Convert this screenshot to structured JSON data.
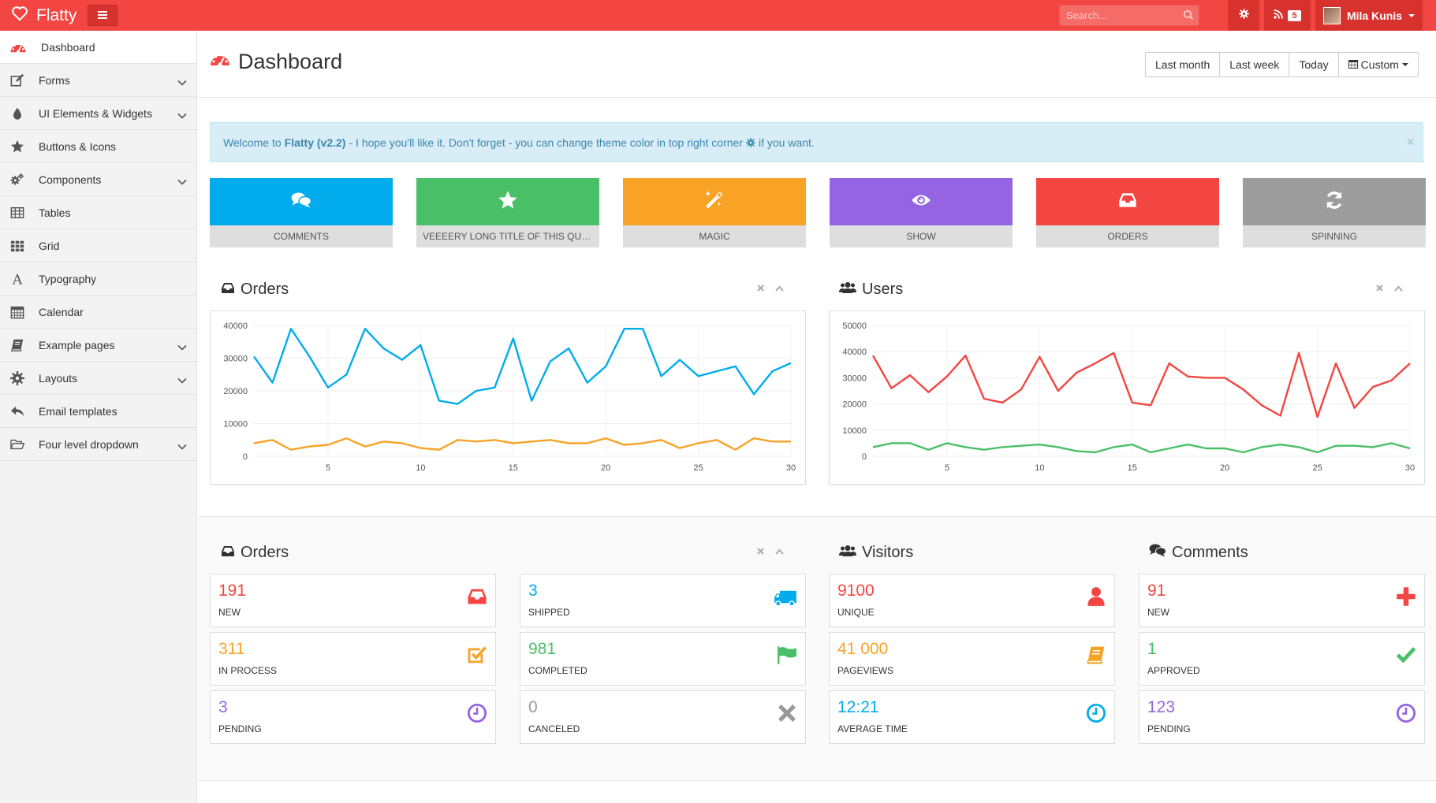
{
  "app": {
    "brand": "Flatty",
    "search_placeholder": "Search...",
    "rss_count": "5",
    "user_name": "Mila Kunis"
  },
  "sidebar": {
    "items": [
      {
        "label": "Dashboard",
        "icon": "dashboard-icon",
        "active": true
      },
      {
        "label": "Forms",
        "icon": "edit-icon",
        "expandable": true
      },
      {
        "label": "UI Elements & Widgets",
        "icon": "tint-icon",
        "expandable": true
      },
      {
        "label": "Buttons & Icons",
        "icon": "star-icon"
      },
      {
        "label": "Components",
        "icon": "cogs-icon",
        "expandable": true
      },
      {
        "label": "Tables",
        "icon": "table-icon"
      },
      {
        "label": "Grid",
        "icon": "grid-icon"
      },
      {
        "label": "Typography",
        "icon": "font-icon"
      },
      {
        "label": "Calendar",
        "icon": "calendar-icon"
      },
      {
        "label": "Example pages",
        "icon": "book-icon",
        "expandable": true
      },
      {
        "label": "Layouts",
        "icon": "cog-icon",
        "expandable": true
      },
      {
        "label": "Email templates",
        "icon": "reply-icon"
      },
      {
        "label": "Four level dropdown",
        "icon": "folder-open-icon",
        "expandable": true
      }
    ]
  },
  "header": {
    "title": "Dashboard",
    "ranges": [
      "Last month",
      "Last week",
      "Today",
      "Custom"
    ]
  },
  "alert": {
    "prefix": "Welcome to",
    "brand": "Flatty (v2.2)",
    "message": "- I hope you'll like it. Don't forget - you can change theme color in top right corner",
    "suffix": "if you want."
  },
  "tiles": [
    {
      "label": "COMMENTS",
      "color": "#00acec",
      "icon": "comments-icon"
    },
    {
      "label": "VEEEERY LONG TITLE OF THIS QUICK BUTTON",
      "color": "#49bf67",
      "icon": "star-icon"
    },
    {
      "label": "MAGIC",
      "color": "#f8a326",
      "icon": "magic-icon"
    },
    {
      "label": "SHOW",
      "color": "#9564e2",
      "icon": "eye-icon"
    },
    {
      "label": "ORDERS",
      "color": "#f34541",
      "icon": "inbox-icon"
    },
    {
      "label": "SPINNING",
      "color": "#9d9d9d",
      "icon": "refresh-icon"
    }
  ],
  "orders_chart_title": "Orders",
  "users_chart_title": "Users",
  "chart_data": [
    {
      "type": "line",
      "title": "Orders",
      "x": [
        1,
        2,
        3,
        4,
        5,
        6,
        7,
        8,
        9,
        10,
        11,
        12,
        13,
        14,
        15,
        16,
        17,
        18,
        19,
        20,
        21,
        22,
        23,
        24,
        25,
        26,
        27,
        28,
        29,
        30
      ],
      "xticks": [
        5,
        10,
        15,
        20,
        25,
        30
      ],
      "yticks": [
        0,
        10000,
        20000,
        30000,
        40000
      ],
      "ylim": [
        0,
        40000
      ],
      "xlim": [
        1,
        30
      ],
      "series": [
        {
          "color": "#00acec",
          "values": [
            30500,
            22500,
            39000,
            30500,
            21000,
            25000,
            39000,
            33000,
            29500,
            34000,
            17000,
            16000,
            20000,
            21000,
            36000,
            17000,
            29000,
            33000,
            22500,
            27500,
            39000,
            39000,
            24500,
            29500,
            24500,
            26000,
            27500,
            19000,
            26000,
            28500
          ]
        },
        {
          "color": "#f8a326",
          "values": [
            4000,
            5000,
            2000,
            3000,
            3500,
            5500,
            3000,
            4500,
            4000,
            2500,
            2000,
            5000,
            4500,
            5000,
            4000,
            4500,
            5000,
            4000,
            4000,
            5500,
            3500,
            4000,
            5000,
            2500,
            4000,
            5000,
            2000,
            5500,
            4500,
            4500
          ]
        }
      ],
      "grid": true
    },
    {
      "type": "line",
      "title": "Users",
      "x": [
        1,
        2,
        3,
        4,
        5,
        6,
        7,
        8,
        9,
        10,
        11,
        12,
        13,
        14,
        15,
        16,
        17,
        18,
        19,
        20,
        21,
        22,
        23,
        24,
        25,
        26,
        27,
        28,
        29,
        30
      ],
      "xticks": [
        5,
        10,
        15,
        20,
        25,
        30
      ],
      "yticks": [
        0,
        10000,
        20000,
        30000,
        40000,
        50000
      ],
      "ylim": [
        0,
        50000
      ],
      "xlim": [
        1,
        30
      ],
      "series": [
        {
          "color": "#f34541",
          "values": [
            38500,
            26000,
            31000,
            24500,
            30500,
            38500,
            22000,
            20500,
            25500,
            38000,
            25000,
            32000,
            35500,
            39500,
            20500,
            19500,
            35500,
            30500,
            30000,
            30000,
            25500,
            19500,
            15500,
            39500,
            15000,
            35500,
            18500,
            26500,
            29000,
            35500
          ]
        },
        {
          "color": "#49bf67",
          "values": [
            3500,
            5000,
            5000,
            2500,
            5000,
            3500,
            2500,
            3500,
            4000,
            4500,
            3500,
            2000,
            1500,
            3500,
            4500,
            1500,
            3000,
            4500,
            3000,
            3000,
            1500,
            3500,
            4500,
            3500,
            1500,
            4000,
            4000,
            3500,
            5000,
            3000
          ]
        }
      ],
      "grid": true
    }
  ],
  "stats_sections": {
    "orders": "Orders",
    "visitors": "Visitors",
    "comments": "Comments"
  },
  "stats": [
    {
      "value": "191",
      "label": "NEW",
      "color": "#f34541",
      "icon": "inbox-icon"
    },
    {
      "value": "3",
      "label": "SHIPPED",
      "color": "#00acec",
      "icon": "truck-icon"
    },
    {
      "value": "9100",
      "label": "UNIQUE",
      "color": "#f34541",
      "icon": "user-icon"
    },
    {
      "value": "91",
      "label": "NEW",
      "color": "#f34541",
      "icon": "plus-icon"
    },
    {
      "value": "311",
      "label": "IN PROCESS",
      "color": "#f8a326",
      "icon": "check-square-icon"
    },
    {
      "value": "981",
      "label": "COMPLETED",
      "color": "#49bf67",
      "icon": "flag-icon"
    },
    {
      "value": "41 000",
      "label": "PAGEVIEWS",
      "color": "#f8a326",
      "icon": "book-icon"
    },
    {
      "value": "1",
      "label": "APPROVED",
      "color": "#49bf67",
      "icon": "check-icon"
    },
    {
      "value": "3",
      "label": "PENDING",
      "color": "#9564e2",
      "icon": "time-icon"
    },
    {
      "value": "0",
      "label": "CANCELED",
      "color": "#999999",
      "icon": "remove-icon"
    },
    {
      "value": "12:21",
      "label": "AVERAGE TIME",
      "color": "#00acec",
      "icon": "time-icon"
    },
    {
      "value": "123",
      "label": "PENDING",
      "color": "#9564e2",
      "icon": "time-icon"
    }
  ]
}
